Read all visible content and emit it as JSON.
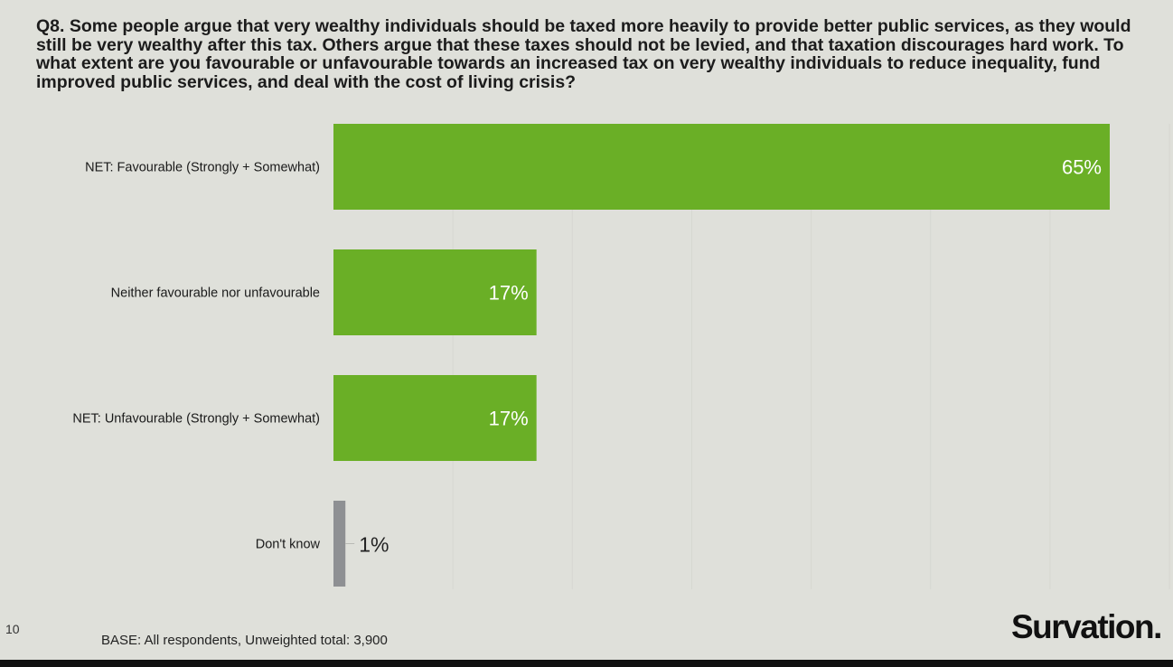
{
  "title": "Q8. Some people argue that very wealthy individuals should be taxed more heavily to provide better public services, as they would still be very wealthy after this tax. Others argue that these taxes should not be levied, and that taxation discourages hard work. To what extent are you favourable or unfavourable towards an increased tax on very wealthy individuals to reduce inequality, fund improved public services, and deal with the cost of living crisis?",
  "slide_number": "10",
  "base_note": "BASE: All respondents, Unweighted total: 3,900",
  "logo": "Survation.",
  "colors": {
    "primary": "#6aaf26",
    "secondary": "#8e9093",
    "background": "#dfe0da"
  },
  "chart_data": {
    "type": "bar",
    "orientation": "horizontal",
    "categories": [
      "NET: Favourable (Strongly + Somewhat)",
      "Neither favourable nor unfavourable",
      "NET: Unfavourable (Strongly + Somewhat)",
      "Don't know"
    ],
    "values": [
      65,
      17,
      17,
      1
    ],
    "labels": [
      "65%",
      "17%",
      "17%",
      "1%"
    ],
    "bar_colors": [
      "#6aaf26",
      "#6aaf26",
      "#6aaf26",
      "#8e9093"
    ],
    "xlim": [
      0,
      65
    ],
    "grid": true,
    "grid_step": 10,
    "unit": "%"
  }
}
